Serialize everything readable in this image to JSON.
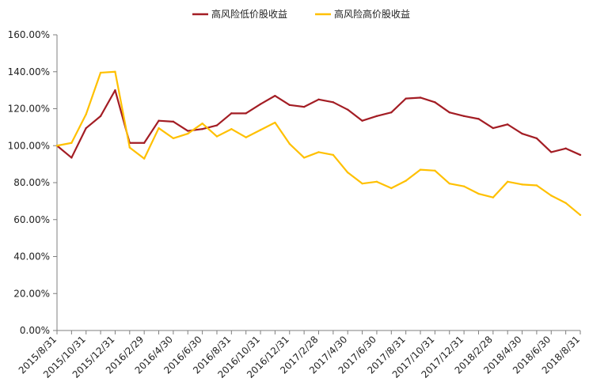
{
  "chart_data": {
    "type": "line",
    "title": "",
    "xlabel": "",
    "ylabel": "",
    "ylim": [
      0,
      160
    ],
    "y_ticks": [
      "0.00%",
      "20.00%",
      "40.00%",
      "60.00%",
      "80.00%",
      "100.00%",
      "120.00%",
      "140.00%",
      "160.00%"
    ],
    "x_tick_labels": [
      "2015/8/31",
      "2015/10/31",
      "2015/12/31",
      "2016/2/29",
      "2016/4/30",
      "2016/6/30",
      "2016/8/31",
      "2016/10/31",
      "2016/12/31",
      "2017/2/28",
      "2017/4/30",
      "2017/6/30",
      "2017/8/31",
      "2017/10/31",
      "2017/12/31",
      "2018/2/28",
      "2018/4/30",
      "2018/6/30",
      "2018/8/31"
    ],
    "x": [
      "2015/8/31",
      "2015/9/30",
      "2015/10/31",
      "2015/11/30",
      "2015/12/31",
      "2016/1/31",
      "2016/2/29",
      "2016/3/31",
      "2016/4/30",
      "2016/5/31",
      "2016/6/30",
      "2016/7/31",
      "2016/8/31",
      "2016/9/30",
      "2016/10/31",
      "2016/11/30",
      "2016/12/31",
      "2017/1/31",
      "2017/2/28",
      "2017/3/31",
      "2017/4/30",
      "2017/5/31",
      "2017/6/30",
      "2017/7/31",
      "2017/8/31",
      "2017/9/30",
      "2017/10/31",
      "2017/11/30",
      "2017/12/31",
      "2018/1/31",
      "2018/2/28",
      "2018/3/31",
      "2018/4/30",
      "2018/5/31",
      "2018/6/30",
      "2018/7/31",
      "2018/8/31"
    ],
    "legend_position": "top-center",
    "grid": false,
    "series": [
      {
        "name": "高风险低价股收益",
        "color": "#a31d24",
        "values": [
          100,
          93.5,
          109.5,
          116,
          130,
          101.5,
          101.5,
          113.5,
          113,
          108,
          109,
          111,
          117.5,
          117.5,
          122.5,
          127,
          122,
          121,
          125,
          123.5,
          119.5,
          113.5,
          116,
          118,
          125.5,
          126,
          123.5,
          118,
          116,
          114.5,
          109.5,
          111.5,
          106.5,
          104,
          96.5,
          98.5,
          95
        ]
      },
      {
        "name": "高风险高价股收益",
        "color": "#ffc000",
        "values": [
          100,
          101.5,
          117,
          139.5,
          140,
          99,
          93,
          109.5,
          104,
          106.5,
          112,
          105,
          109,
          104.5,
          108.5,
          112.5,
          101,
          93.5,
          96.5,
          95,
          85.5,
          79.5,
          80.5,
          77,
          81,
          87,
          86.5,
          79.5,
          78,
          74,
          72,
          80.5,
          79,
          78.5,
          73,
          69,
          62.5
        ]
      }
    ]
  }
}
